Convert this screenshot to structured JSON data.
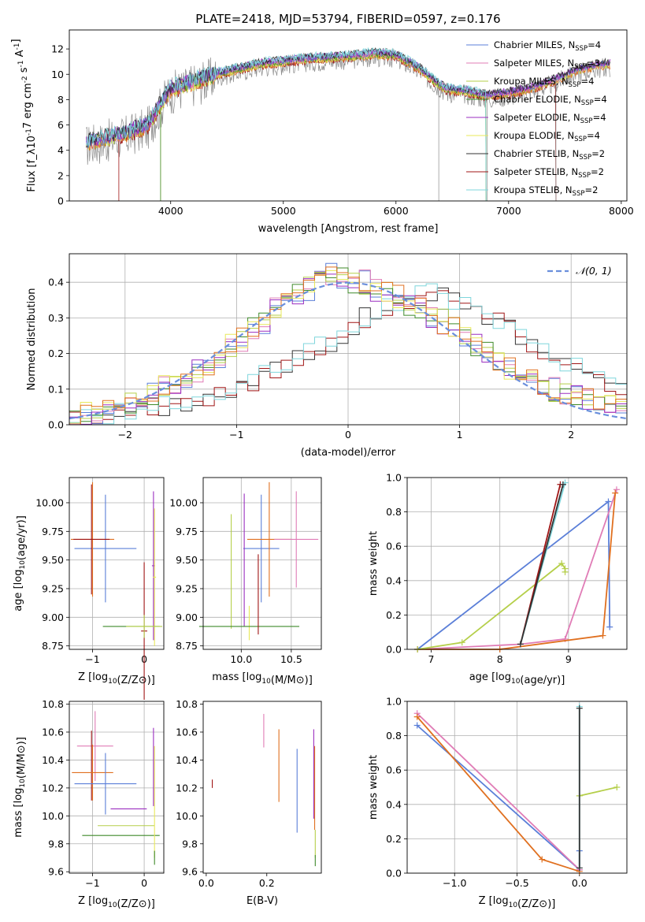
{
  "figure_title": "PLATE=2418, MJD=53794, FIBERID=0597, z=0.176",
  "colors": {
    "chabrier_miles": "#5b7fd8",
    "salpeter_miles": "#e07cb6",
    "kroupa_miles": "#b5cf4a",
    "chabrier_elodie": "#3f8a2a",
    "salpeter_elodie": "#9b2fc0",
    "kroupa_elodie": "#e8e85a",
    "chabrier_stelib": "#333333",
    "salpeter_stelib": "#a01515",
    "kroupa_stelib": "#7fd6dc",
    "orange": "#e07020",
    "gray_data": "#8a8a8a",
    "normal": "#6a8fdc"
  },
  "chart_data": [
    {
      "id": "spectrum",
      "type": "line",
      "xlabel": "wavelength [Angstrom, rest frame]",
      "ylabel": "Flux [f_λ10^-17 erg cm^-2 s^-1 A^-1]",
      "xlim": [
        3100,
        8050
      ],
      "ylim": [
        0,
        13.5
      ],
      "xticks": [
        4000,
        5000,
        6000,
        7000,
        8000
      ],
      "yticks": [
        0,
        2,
        4,
        6,
        8,
        10,
        12
      ],
      "legend_position": "top-right",
      "legend": [
        {
          "label": "Chabrier MILES, N",
          "sub": "SSP",
          "value": "=4",
          "color": "#5b7fd8"
        },
        {
          "label": "Salpeter MILES, N",
          "sub": "SSP",
          "value": "=3",
          "color": "#e07cb6"
        },
        {
          "label": "Kroupa MILES, N",
          "sub": "SSP",
          "value": "=4",
          "color": "#b5cf4a"
        },
        {
          "label": "Chabrier ELODIE, N",
          "sub": "SSP",
          "value": "=4",
          "color": "#3f8a2a"
        },
        {
          "label": "Salpeter ELODIE, N",
          "sub": "SSP",
          "value": "=4",
          "color": "#9b2fc0"
        },
        {
          "label": "Kroupa ELODIE, N",
          "sub": "SSP",
          "value": "=4",
          "color": "#e8e85a"
        },
        {
          "label": "Chabrier STELIB, N",
          "sub": "SSP",
          "value": "=2",
          "color": "#333333"
        },
        {
          "label": "Salpeter STELIB, N",
          "sub": "SSP",
          "value": "=2",
          "color": "#a01515"
        },
        {
          "label": "Kroupa STELIB, N",
          "sub": "SSP",
          "value": "=2",
          "color": "#7fd6dc"
        }
      ],
      "continuum": {
        "x": [
          3250,
          3400,
          3600,
          3800,
          3950,
          4000,
          4200,
          4400,
          4600,
          4800,
          5000,
          5200,
          5400,
          5600,
          5800,
          6000,
          6200,
          6350,
          6450,
          6600,
          6800,
          7000,
          7200,
          7400,
          7600,
          7800,
          7900
        ],
        "y": [
          4.6,
          4.9,
          5.3,
          6.0,
          8.2,
          8.8,
          9.4,
          10.0,
          10.4,
          10.8,
          11.0,
          11.2,
          11.3,
          11.4,
          11.6,
          11.5,
          10.5,
          9.4,
          8.8,
          8.7,
          8.3,
          8.5,
          8.9,
          9.5,
          10.3,
          10.7,
          10.8
        ]
      },
      "model_cutoffs": [
        {
          "series": "salpeter_stelib",
          "x_start": 3540,
          "x_end": 7420
        },
        {
          "series": "kroupa_elodie",
          "x_start": 3910,
          "x_end": 6800
        },
        {
          "series": "chabrier_elodie",
          "x_start": 3910,
          "x_end": 6800
        },
        {
          "series": "kroupa_stelib",
          "x_start": 3250,
          "x_end": 6800
        },
        {
          "series": "gray_data",
          "x_start": 3250,
          "x_end": 7900
        }
      ],
      "data_cutoffs": [
        6380,
        6810,
        7420
      ]
    },
    {
      "id": "residuals",
      "type": "step",
      "xlabel": "(data-model)/error",
      "ylabel": "Normed distribution",
      "xlim": [
        -2.5,
        2.5
      ],
      "ylim": [
        0,
        0.48
      ],
      "xticks": [
        -2,
        -1,
        0,
        1,
        2
      ],
      "yticks": [
        0.0,
        0.1,
        0.2,
        0.3,
        0.4
      ],
      "grid": true,
      "legend_position": "top-right",
      "legend": [
        {
          "label": "𝒩(0, 1)",
          "color": "#6a8fdc",
          "dashed": true
        }
      ],
      "group_a_series": [
        "chabrier_miles",
        "salpeter_miles",
        "kroupa_miles",
        "chabrier_elodie",
        "salpeter_elodie",
        "kroupa_elodie",
        "orange"
      ],
      "group_b_series": [
        "chabrier_stelib",
        "salpeter_stelib",
        "kroupa_stelib"
      ],
      "group_a_centers": [
        -2.45,
        -2.35,
        -2.25,
        -2.15,
        -2.05,
        -1.95,
        -1.85,
        -1.75,
        -1.65,
        -1.55,
        -1.45,
        -1.35,
        -1.25,
        -1.15,
        -1.05,
        -0.95,
        -0.85,
        -0.75,
        -0.65,
        -0.55,
        -0.45,
        -0.35,
        -0.25,
        -0.15,
        -0.05,
        0.05,
        0.15,
        0.25,
        0.35,
        0.45,
        0.55,
        0.65,
        0.75,
        0.85,
        0.95,
        1.05,
        1.15,
        1.25,
        1.35,
        1.45,
        1.55,
        1.65,
        1.75,
        1.85,
        1.95,
        2.05,
        2.15,
        2.25,
        2.35,
        2.45
      ],
      "group_a_values": [
        0.02,
        0.03,
        0.03,
        0.05,
        0.06,
        0.06,
        0.08,
        0.09,
        0.11,
        0.12,
        0.12,
        0.15,
        0.17,
        0.19,
        0.22,
        0.24,
        0.27,
        0.28,
        0.33,
        0.35,
        0.37,
        0.38,
        0.4,
        0.42,
        0.41,
        0.4,
        0.4,
        0.38,
        0.37,
        0.36,
        0.34,
        0.33,
        0.3,
        0.29,
        0.27,
        0.24,
        0.22,
        0.2,
        0.18,
        0.16,
        0.15,
        0.13,
        0.12,
        0.1,
        0.09,
        0.08,
        0.07,
        0.06,
        0.05,
        0.04
      ],
      "group_b_centers": [
        -2.45,
        -2.35,
        -2.25,
        -2.15,
        -2.05,
        -1.95,
        -1.85,
        -1.75,
        -1.65,
        -1.55,
        -1.45,
        -1.35,
        -1.25,
        -1.15,
        -1.05,
        -0.95,
        -0.85,
        -0.75,
        -0.65,
        -0.55,
        -0.45,
        -0.35,
        -0.25,
        -0.15,
        -0.05,
        0.05,
        0.15,
        0.25,
        0.35,
        0.45,
        0.55,
        0.65,
        0.75,
        0.85,
        0.95,
        1.05,
        1.15,
        1.25,
        1.35,
        1.45,
        1.55,
        1.65,
        1.75,
        1.85,
        1.95,
        2.05,
        2.15,
        2.25,
        2.35,
        2.45
      ],
      "group_b_values": [
        0.02,
        0.02,
        0.02,
        0.03,
        0.03,
        0.04,
        0.04,
        0.05,
        0.05,
        0.06,
        0.06,
        0.07,
        0.08,
        0.08,
        0.09,
        0.1,
        0.12,
        0.14,
        0.15,
        0.17,
        0.19,
        0.2,
        0.22,
        0.23,
        0.25,
        0.27,
        0.3,
        0.32,
        0.33,
        0.34,
        0.35,
        0.36,
        0.37,
        0.36,
        0.35,
        0.34,
        0.33,
        0.31,
        0.29,
        0.27,
        0.25,
        0.23,
        0.21,
        0.19,
        0.17,
        0.16,
        0.15,
        0.14,
        0.12,
        0.11
      ],
      "normal_curve": {
        "mean": 0,
        "sigma": 1
      }
    },
    {
      "id": "age_vs_Z",
      "type": "errorbar",
      "xlabel": "Z [log10(Z/Z⊙)]",
      "ylabel": "age  [log10(age/yr)]",
      "xlim": [
        -1.45,
        0.38
      ],
      "ylim": [
        8.72,
        10.22
      ],
      "xticks": [
        -1,
        0
      ],
      "yticks": [
        8.75,
        9.0,
        9.25,
        9.5,
        9.75,
        10.0
      ],
      "grid": true,
      "points": [
        {
          "x": -0.75,
          "y": 9.6,
          "xerr": 0.6,
          "yerr": 0.47,
          "series": "chabrier_miles"
        },
        {
          "x": -1.0,
          "y": 9.68,
          "xerr": 0.42,
          "yerr": 0.5,
          "series": "orange"
        },
        {
          "x": -1.02,
          "y": 9.68,
          "xerr": 0.35,
          "yerr": 0.48,
          "series": "salpeter_stelib"
        },
        {
          "x": 0.0,
          "y": 8.88,
          "xerr": 0.06,
          "yerr": 0.6,
          "series": "salpeter_stelib"
        },
        {
          "x": 0.18,
          "y": 9.45,
          "xerr": 0.03,
          "yerr": 0.65,
          "series": "salpeter_elodie"
        },
        {
          "x": 0.2,
          "y": 9.35,
          "xerr": 0.03,
          "yerr": 0.6,
          "series": "kroupa_elodie"
        },
        {
          "x": -0.25,
          "y": 8.92,
          "xerr": 0.55,
          "yerr": 0.0,
          "series": "chabrier_elodie"
        },
        {
          "x": 0.0,
          "y": 8.92,
          "xerr": 0.35,
          "yerr": 0.1,
          "series": "kroupa_miles"
        }
      ]
    },
    {
      "id": "age_vs_mass",
      "type": "errorbar",
      "xlabel": "mass [log10(M/M⊙)]",
      "ylabel": "",
      "xlim": [
        9.62,
        10.8
      ],
      "ylim": [
        8.72,
        10.22
      ],
      "xticks": [
        10.0,
        10.5
      ],
      "yticks": [
        8.75,
        9.0,
        9.25,
        9.5,
        9.75,
        10.0
      ],
      "grid": true,
      "points": [
        {
          "x": 10.2,
          "y": 9.6,
          "xerr": 0.18,
          "yerr": 0.47,
          "series": "chabrier_miles"
        },
        {
          "x": 10.28,
          "y": 9.68,
          "xerr": 0.22,
          "yerr": 0.5,
          "series": "orange"
        },
        {
          "x": 10.55,
          "y": 9.68,
          "xerr": 0.22,
          "yerr": 0.42,
          "series": "salpeter_miles"
        },
        {
          "x": 10.03,
          "y": 9.5,
          "xerr": 0.0,
          "yerr": 0.58,
          "series": "salpeter_elodie"
        },
        {
          "x": 9.9,
          "y": 9.4,
          "xerr": 0.0,
          "yerr": 0.5,
          "series": "kroupa_miles"
        },
        {
          "x": 10.08,
          "y": 8.95,
          "xerr": 0.0,
          "yerr": 0.15,
          "series": "kroupa_elodie"
        },
        {
          "x": 10.08,
          "y": 8.92,
          "xerr": 0.5,
          "yerr": 0.0,
          "series": "chabrier_elodie"
        },
        {
          "x": 10.17,
          "y": 9.2,
          "xerr": 0.0,
          "yerr": 0.35,
          "series": "salpeter_stelib"
        }
      ]
    },
    {
      "id": "mass_weight_vs_age",
      "type": "line",
      "xlabel": "age  [log10(age/yr)]",
      "ylabel": "mass weight",
      "xlim": [
        6.65,
        9.85
      ],
      "ylim": [
        0,
        1.0
      ],
      "xticks": [
        7,
        8,
        9
      ],
      "yticks": [
        0.0,
        0.2,
        0.4,
        0.6,
        0.8,
        1.0
      ],
      "grid": true,
      "series": [
        {
          "name": "chabrier_miles",
          "x": [
            6.8,
            9.58,
            9.6
          ],
          "y": [
            0.0,
            0.86,
            0.13
          ]
        },
        {
          "name": "salpeter_miles",
          "x": [
            6.8,
            8.3,
            8.95,
            9.7
          ],
          "y": [
            0.0,
            0.03,
            0.06,
            0.93
          ]
        },
        {
          "name": "orange",
          "x": [
            6.8,
            8.0,
            9.5,
            9.68
          ],
          "y": [
            0.0,
            0.0,
            0.08,
            0.91
          ]
        },
        {
          "name": "kroupa_miles",
          "x": [
            6.8,
            7.45,
            8.9,
            8.95,
            8.95
          ],
          "y": [
            0.0,
            0.04,
            0.5,
            0.47,
            0.45
          ]
        },
        {
          "name": "salpeter_stelib",
          "x": [
            8.3,
            8.88
          ],
          "y": [
            0.03,
            0.96
          ]
        },
        {
          "name": "kroupa_stelib",
          "x": [
            8.3,
            8.95
          ],
          "y": [
            0.03,
            0.97
          ]
        },
        {
          "name": "chabrier_stelib",
          "x": [
            8.3,
            8.92
          ],
          "y": [
            0.03,
            0.96
          ]
        }
      ]
    },
    {
      "id": "mass_vs_Z",
      "type": "errorbar",
      "xlabel": "Z [log10(Z/Z⊙)]",
      "ylabel": "mass [log10(M/M⊙)]",
      "xlim": [
        -1.45,
        0.38
      ],
      "ylim": [
        9.59,
        10.82
      ],
      "xticks": [
        -1,
        0
      ],
      "yticks": [
        9.6,
        9.8,
        10.0,
        10.2,
        10.4,
        10.6,
        10.8
      ],
      "grid": true,
      "points": [
        {
          "x": -0.95,
          "y": 10.5,
          "xerr": 0.35,
          "yerr": 0.25,
          "series": "salpeter_miles"
        },
        {
          "x": -1.02,
          "y": 10.36,
          "xerr": 0.0,
          "yerr": 0.25,
          "series": "salpeter_stelib"
        },
        {
          "x": -1.0,
          "y": 10.31,
          "xerr": 0.4,
          "yerr": 0.2,
          "series": "orange"
        },
        {
          "x": -0.75,
          "y": 10.23,
          "xerr": 0.6,
          "yerr": 0.22,
          "series": "chabrier_miles"
        },
        {
          "x": -0.3,
          "y": 10.05,
          "xerr": 0.35,
          "yerr": 0.0,
          "series": "salpeter_elodie"
        },
        {
          "x": -0.35,
          "y": 9.93,
          "xerr": 0.55,
          "yerr": 0.0,
          "series": "kroupa_miles"
        },
        {
          "x": -0.45,
          "y": 9.86,
          "xerr": 0.75,
          "yerr": 0.0,
          "series": "chabrier_elodie"
        },
        {
          "x": 0.18,
          "y": 10.35,
          "xerr": 0.0,
          "yerr": 0.28,
          "series": "salpeter_elodie"
        },
        {
          "x": 0.2,
          "y": 10.1,
          "xerr": 0.0,
          "yerr": 0.4,
          "series": "kroupa_elodie"
        },
        {
          "x": 0.2,
          "y": 9.7,
          "xerr": 0.0,
          "yerr": 0.05,
          "series": "chabrier_elodie"
        }
      ]
    },
    {
      "id": "mass_vs_ebv",
      "type": "errorbar",
      "xlabel": "E(B-V)",
      "ylabel": "",
      "xlim": [
        -0.01,
        0.38
      ],
      "ylim": [
        9.59,
        10.82
      ],
      "xticks": [
        0.0,
        0.2
      ],
      "yticks": [
        9.6,
        9.8,
        10.0,
        10.2,
        10.4,
        10.6,
        10.8
      ],
      "grid": false,
      "points": [
        {
          "x": 0.02,
          "y": 10.23,
          "xerr": 0.0,
          "yerr": 0.03,
          "series": "salpeter_stelib"
        },
        {
          "x": 0.19,
          "y": 10.61,
          "xerr": 0.0,
          "yerr": 0.12,
          "series": "salpeter_miles"
        },
        {
          "x": 0.24,
          "y": 10.36,
          "xerr": 0.0,
          "yerr": 0.26,
          "series": "orange"
        },
        {
          "x": 0.3,
          "y": 10.18,
          "xerr": 0.0,
          "yerr": 0.3,
          "series": "chabrier_miles"
        },
        {
          "x": 0.355,
          "y": 10.3,
          "xerr": 0.0,
          "yerr": 0.32,
          "series": "salpeter_elodie"
        },
        {
          "x": 0.358,
          "y": 10.2,
          "xerr": 0.0,
          "yerr": 0.3,
          "series": "orange"
        },
        {
          "x": 0.36,
          "y": 9.8,
          "xerr": 0.0,
          "yerr": 0.1,
          "series": "kroupa_miles"
        },
        {
          "x": 0.36,
          "y": 9.68,
          "xerr": 0.0,
          "yerr": 0.04,
          "series": "chabrier_elodie"
        }
      ]
    },
    {
      "id": "mass_weight_vs_Z",
      "type": "line",
      "xlabel": "Z [log10(Z/Z⊙)]",
      "ylabel": "mass weight",
      "xlim": [
        -1.38,
        0.38
      ],
      "ylim": [
        0,
        1.0
      ],
      "xticks": [
        -1.0,
        -0.5,
        0.0
      ],
      "yticks": [
        0.0,
        0.2,
        0.4,
        0.6,
        0.8,
        1.0
      ],
      "grid": true,
      "series": [
        {
          "name": "chabrier_miles",
          "x": [
            -1.3,
            0.0,
            0.0
          ],
          "y": [
            0.86,
            0.02,
            0.13
          ]
        },
        {
          "name": "salpeter_miles",
          "x": [
            -1.3,
            0.0
          ],
          "y": [
            0.93,
            0.02
          ]
        },
        {
          "name": "orange",
          "x": [
            -1.3,
            -0.3,
            0.0
          ],
          "y": [
            0.91,
            0.08,
            0.01
          ]
        },
        {
          "name": "kroupa_miles",
          "x": [
            0.0,
            0.3
          ],
          "y": [
            0.45,
            0.5
          ]
        },
        {
          "name": "kroupa_stelib",
          "x": [
            0.0,
            0.0
          ],
          "y": [
            0.03,
            0.97
          ]
        },
        {
          "name": "chabrier_stelib",
          "x": [
            0.0,
            0.0
          ],
          "y": [
            0.03,
            0.96
          ]
        }
      ]
    }
  ]
}
